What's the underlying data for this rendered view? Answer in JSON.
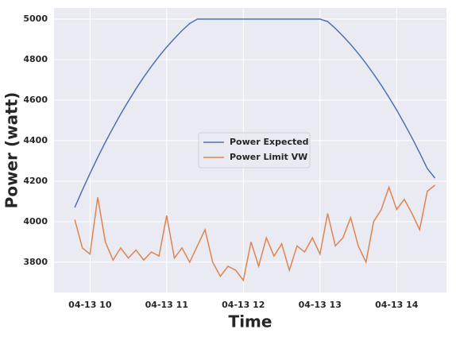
{
  "chart_data": {
    "type": "line",
    "x_label": "Time",
    "y_label": "Power (watt)",
    "x": [
      9.8,
      9.9,
      10.0,
      10.1,
      10.2,
      10.3,
      10.4,
      10.5,
      10.6,
      10.7,
      10.8,
      10.9,
      11.0,
      11.1,
      11.2,
      11.3,
      11.4,
      11.5,
      11.6,
      11.7,
      11.8,
      11.9,
      12.0,
      12.1,
      12.2,
      12.3,
      12.4,
      12.5,
      12.6,
      12.7,
      12.8,
      12.9,
      13.0,
      13.1,
      13.2,
      13.3,
      13.4,
      13.5,
      13.6,
      13.7,
      13.8,
      13.9,
      14.0,
      14.1,
      14.2,
      14.3,
      14.4,
      14.5
    ],
    "series": [
      {
        "name": "Power Expected",
        "color": "#4c72b0",
        "values": [
          4070,
          4156,
          4238,
          4317,
          4392,
          4463,
          4531,
          4595,
          4656,
          4713,
          4766,
          4816,
          4862,
          4904,
          4943,
          4978,
          5000,
          5000,
          5000,
          5000,
          5000,
          5000,
          5000,
          5000,
          5000,
          5000,
          5000,
          5000,
          5000,
          5000,
          5000,
          5000,
          5000,
          4988,
          4954,
          4916,
          4875,
          4830,
          4781,
          4729,
          4673,
          4614,
          4551,
          4484,
          4414,
          4340,
          4262,
          4215
        ]
      },
      {
        "name": "Power Limit VW",
        "color": "#dd8452",
        "values": [
          4010,
          3870,
          3840,
          4120,
          3900,
          3810,
          3870,
          3820,
          3860,
          3810,
          3850,
          3830,
          4030,
          3820,
          3870,
          3800,
          3880,
          3960,
          3800,
          3730,
          3780,
          3760,
          3710,
          3900,
          3780,
          3920,
          3830,
          3890,
          3760,
          3880,
          3850,
          3920,
          3840,
          4040,
          3880,
          3920,
          4020,
          3880,
          3800,
          4000,
          4060,
          4170,
          4060,
          4110,
          4040,
          3960,
          4150,
          4180
        ]
      }
    ],
    "xlim": [
      9.53,
      14.65
    ],
    "xticks": [
      {
        "value": 10,
        "label": "04-13 10"
      },
      {
        "value": 11,
        "label": "04-13 11"
      },
      {
        "value": 12,
        "label": "04-13 12"
      },
      {
        "value": 13,
        "label": "04-13 13"
      },
      {
        "value": 14,
        "label": "04-13 14"
      }
    ],
    "ylim": [
      3650,
      5055
    ],
    "yticks": [
      3800,
      4000,
      4200,
      4400,
      4600,
      4800,
      5000
    ],
    "grid": true,
    "legend": "center"
  }
}
